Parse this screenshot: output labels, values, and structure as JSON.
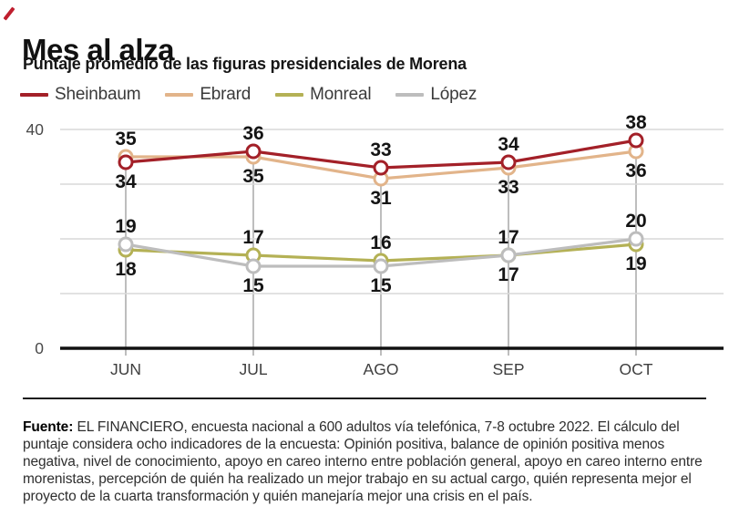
{
  "brand": {
    "slash_color": "#bf1e2e"
  },
  "header": {
    "title": "Mes al alza",
    "subtitle": "Puntaje promedio de las figuras presidenciales de Morena"
  },
  "legend": [
    {
      "label": "Sheinbaum",
      "color": "#a32028"
    },
    {
      "label": "Ebrard",
      "color": "#e2b48a"
    },
    {
      "label": "Monreal",
      "color": "#b4b155"
    },
    {
      "label": "López",
      "color": "#bdbdbd"
    }
  ],
  "chart_data": {
    "type": "line",
    "categories": [
      "JUN",
      "JUL",
      "AGO",
      "SEP",
      "OCT"
    ],
    "series": [
      {
        "name": "Sheinbaum",
        "color": "#a32028",
        "values": [
          34,
          36,
          33,
          34,
          38
        ]
      },
      {
        "name": "Ebrard",
        "color": "#e2b48a",
        "values": [
          35,
          35,
          31,
          33,
          36
        ]
      },
      {
        "name": "Monreal",
        "color": "#b4b155",
        "values": [
          18,
          17,
          16,
          17,
          19
        ]
      },
      {
        "name": "López",
        "color": "#bdbdbd",
        "values": [
          19,
          15,
          15,
          17,
          20
        ]
      }
    ],
    "title": "Mes al alza",
    "subtitle": "Puntaje promedio de las figuras presidenciales de Morena",
    "xlabel": "",
    "ylabel": "",
    "ylim": [
      0,
      40
    ],
    "gridline_values": [
      10,
      20,
      30,
      40
    ],
    "yticks": [
      {
        "value": 40,
        "label": "40"
      },
      {
        "value": 0,
        "label": "0"
      }
    ],
    "grid": true,
    "legend_position": "top",
    "data_labels": true
  },
  "footer": {
    "source_label": "Fuente:",
    "source_text": " EL FINANCIERO, encuesta nacional a 600 adultos vía telefónica, 7-8 octubre 2022. El cálculo del puntaje considera ocho indicadores de la encuesta: Opinión positiva, balance de opinión positiva menos negativa, nivel de conocimiento, apoyo en careo interno entre población general, apoyo en careo interno entre morenistas, percepción de quién ha realizado un mejor trabajo en su actual cargo, quién representa mejor el proyecto de la cuarta transformación y quién manejaría mejor una crisis en el país."
  }
}
